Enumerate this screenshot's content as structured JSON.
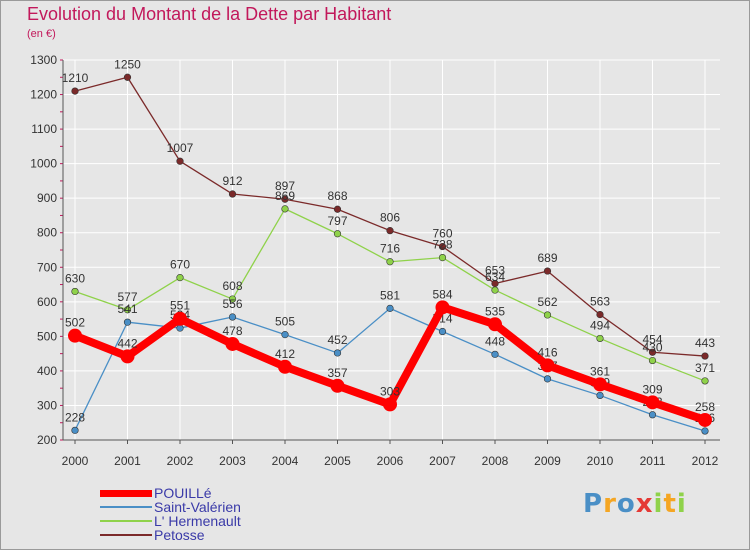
{
  "chart_data": {
    "type": "line",
    "title": "Evolution du Montant de la Dette par Habitant",
    "subtitle": "(en €)",
    "xlabel": "",
    "ylabel": "",
    "ylim": [
      200,
      1300
    ],
    "yticks": [
      200,
      300,
      400,
      500,
      600,
      700,
      800,
      900,
      1000,
      1100,
      1200,
      1300
    ],
    "categories": [
      "2000",
      "2001",
      "2002",
      "2003",
      "2004",
      "2005",
      "2006",
      "2007",
      "2008",
      "2009",
      "2010",
      "2011",
      "2012"
    ],
    "series": [
      {
        "name": "Petosse",
        "color": "#7b2a2a",
        "values": [
          1210,
          1250,
          1007,
          912,
          897,
          868,
          806,
          760,
          653,
          689,
          563,
          454,
          443
        ]
      },
      {
        "name": "L' Hermenault",
        "color": "#8fd24a",
        "values": [
          630,
          577,
          670,
          608,
          869,
          797,
          716,
          728,
          634,
          562,
          494,
          430,
          371
        ]
      },
      {
        "name": "Saint-Valérien",
        "color": "#4a8fc6",
        "values": [
          228,
          541,
          524,
          556,
          505,
          452,
          581,
          514,
          448,
          377,
          329,
          273,
          226
        ]
      },
      {
        "name": "POUILLé",
        "color": "#ff0000",
        "values": [
          502,
          442,
          551,
          478,
          412,
          357,
          303,
          584,
          535,
          416,
          361,
          309,
          258
        ]
      }
    ]
  },
  "legend": [
    {
      "label": "POUILLé",
      "color": "#ff0000"
    },
    {
      "label": "Saint-Valérien",
      "color": "#4a8fc6"
    },
    {
      "label": "L' Hermenault",
      "color": "#8fd24a"
    },
    {
      "label": "Petosse",
      "color": "#7b2a2a"
    }
  ],
  "logo": {
    "letters": [
      "P",
      "r",
      "o",
      "x",
      "i",
      "t",
      "i"
    ],
    "colors": [
      "#4a8fc6",
      "#f5a623",
      "#4a8fc6",
      "#e53935",
      "#8fd24a",
      "#f5a623",
      "#8fd24a"
    ]
  }
}
